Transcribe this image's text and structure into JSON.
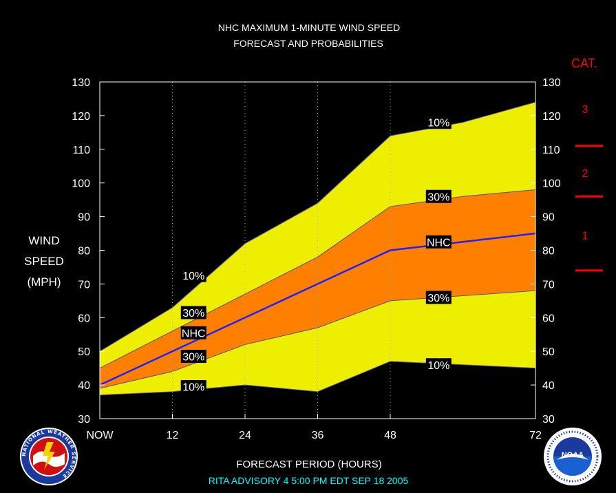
{
  "colors": {
    "background": "#000000",
    "band_10": "#eeee00",
    "band_30": "#ff8000",
    "nhc_line": "#2020ff",
    "title_text": "#ffffff",
    "footer_text": "#00ffff",
    "category": "#ff0000",
    "grid": "#aaaaaa"
  },
  "chart_data": {
    "type": "area",
    "title": "NHC MAXIMUM 1-MINUTE WIND SPEED",
    "subtitle": "FORECAST AND PROBABILITIES",
    "xlabel": "FORECAST PERIOD (HOURS)",
    "ylabel": [
      "WIND",
      "SPEED",
      "(MPH)"
    ],
    "footer": "RITA   ADVISORY  4 5:00  PM  EDT  SEP  18  2005",
    "xlim": [
      0,
      72
    ],
    "ylim": [
      30,
      130
    ],
    "x_ticks": [
      0,
      12,
      24,
      36,
      48,
      72
    ],
    "x_tick_labels": [
      "NOW",
      "12",
      "24",
      "36",
      "48",
      "72"
    ],
    "y_ticks": [
      30,
      40,
      50,
      60,
      70,
      80,
      90,
      100,
      110,
      120,
      130
    ],
    "grid_vertical": [
      12,
      24,
      36,
      48
    ],
    "x": [
      0,
      12,
      24,
      36,
      48,
      60,
      72
    ],
    "series": [
      {
        "name": "10%",
        "role": "upper_10",
        "values": [
          50,
          63,
          82,
          94,
          114,
          118,
          124
        ]
      },
      {
        "name": "30%",
        "role": "upper_30",
        "values": [
          45,
          56,
          67,
          78,
          93,
          96,
          98
        ]
      },
      {
        "name": "NHC",
        "role": "forecast",
        "values": [
          40,
          50,
          60,
          70,
          80,
          82.5,
          85
        ]
      },
      {
        "name": "30%",
        "role": "lower_30",
        "values": [
          39,
          44,
          52,
          57,
          65,
          66.5,
          68
        ]
      },
      {
        "name": "10%",
        "role": "lower_10",
        "values": [
          37,
          38,
          40,
          38,
          47,
          46,
          45
        ]
      }
    ],
    "band_labels": [
      {
        "text": "10%",
        "x": 15.5,
        "y": 72.5
      },
      {
        "text": "30%",
        "x": 15.5,
        "y": 61.5
      },
      {
        "text": "NHC",
        "x": 15.5,
        "y": 55.5
      },
      {
        "text": "30%",
        "x": 15.5,
        "y": 48.5
      },
      {
        "text": "10%",
        "x": 15.5,
        "y": 39.5
      },
      {
        "text": "10%",
        "x": 56,
        "y": 118
      },
      {
        "text": "30%",
        "x": 56,
        "y": 96
      },
      {
        "text": "NHC",
        "x": 56,
        "y": 82.5
      },
      {
        "text": "30%",
        "x": 56,
        "y": 66
      },
      {
        "text": "10%",
        "x": 56,
        "y": 46
      }
    ],
    "categories_scale": {
      "title": "CAT.",
      "labels": [
        {
          "text": "3",
          "y": 122
        },
        {
          "text": "2",
          "y": 103
        },
        {
          "text": "1",
          "y": 84.5
        }
      ],
      "boundaries": [
        111,
        96,
        74
      ]
    }
  },
  "logos": {
    "left": {
      "name": "nws-logo",
      "text": "NATIONAL WEATHER SERVICE"
    },
    "right": {
      "name": "noaa-logo",
      "text": "NOAA"
    }
  }
}
